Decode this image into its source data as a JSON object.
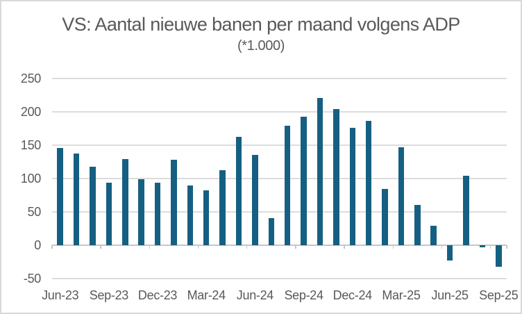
{
  "title": "VS: Aantal nieuwe banen per maand volgens ADP",
  "subtitle": "(*1.000)",
  "colors": {
    "bar": "#156082",
    "gridline": "#dcdcdc",
    "axis": "#c6c6c6",
    "text": "#595959",
    "frame": "#d8d8d8",
    "background": "#ffffff"
  },
  "chart_data": {
    "type": "bar",
    "title": "VS: Aantal nieuwe banen per maand volgens ADP",
    "subtitle": "(*1.000)",
    "categories": [
      "Jun-23",
      "Jul-23",
      "Aug-23",
      "Sep-23",
      "Oct-23",
      "Nov-23",
      "Dec-23",
      "Jan-24",
      "Feb-24",
      "Mar-24",
      "Apr-24",
      "May-24",
      "Jun-24",
      "Jul-24",
      "Aug-24",
      "Sep-24",
      "Oct-24",
      "Nov-24",
      "Dec-24",
      "Jan-25",
      "Feb-25",
      "Mar-25",
      "Apr-25",
      "May-25",
      "Jun-25",
      "Jul-25",
      "Aug-25",
      "Sep-25"
    ],
    "values": [
      146,
      138,
      118,
      94,
      129,
      99,
      94,
      128,
      90,
      82,
      113,
      163,
      135,
      41,
      179,
      193,
      221,
      204,
      176,
      186,
      84,
      147,
      60,
      29,
      -23,
      104,
      -3,
      -32
    ],
    "x_tick_labels": [
      "Jun-23",
      "Sep-23",
      "Dec-23",
      "Mar-24",
      "Jun-24",
      "Sep-24",
      "Dec-24",
      "Mar-25",
      "Jun-25",
      "Sep-25"
    ],
    "x_tick_every": 3,
    "y_ticks": [
      250,
      200,
      150,
      100,
      50,
      0,
      -50
    ],
    "ylim": [
      -50,
      250
    ],
    "xlabel": "",
    "ylabel": "",
    "grid": true,
    "legend": false
  }
}
